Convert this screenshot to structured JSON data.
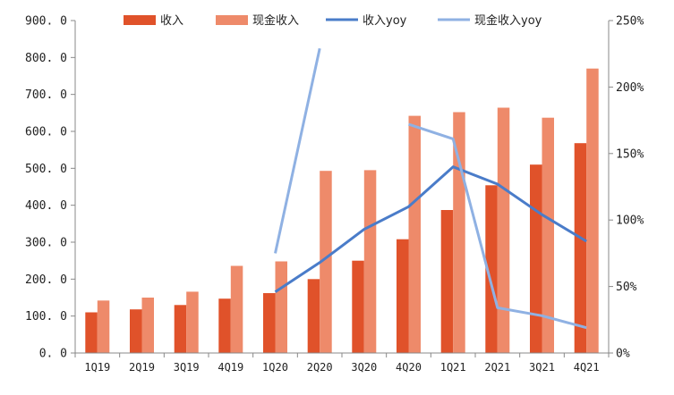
{
  "chart_data": {
    "type": "bar",
    "categories": [
      "1Q19",
      "2Q19",
      "3Q19",
      "4Q19",
      "1Q20",
      "2Q20",
      "3Q20",
      "4Q20",
      "1Q21",
      "2Q21",
      "3Q21",
      "4Q21"
    ],
    "series": [
      {
        "name": "收入",
        "kind": "bar",
        "axis": "left",
        "color": "#E0522A",
        "values": [
          110,
          118,
          130,
          147,
          162,
          200,
          250,
          308,
          387,
          454,
          510,
          568
        ]
      },
      {
        "name": "现金收入",
        "kind": "bar",
        "axis": "left",
        "color": "#EE8A6A",
        "values": [
          142,
          150,
          166,
          236,
          248,
          493,
          495,
          642,
          652,
          664,
          637,
          770
        ]
      },
      {
        "name": "收入yoy",
        "kind": "line",
        "axis": "right",
        "color": "#4A7CC9",
        "values": [
          null,
          null,
          null,
          null,
          0.46,
          0.68,
          0.93,
          1.1,
          1.4,
          1.27,
          1.04,
          0.84
        ]
      },
      {
        "name": "现金收入yoy",
        "kind": "line",
        "axis": "right",
        "color": "#8FB1E3",
        "values": [
          null,
          null,
          null,
          null,
          0.75,
          2.29,
          null,
          1.72,
          1.61,
          0.34,
          0.28,
          0.19
        ]
      }
    ],
    "y_left": {
      "min": 0,
      "max": 900,
      "ticks": [
        "0. 0",
        "100. 0",
        "200. 0",
        "300. 0",
        "400. 0",
        "500. 0",
        "600. 0",
        "700. 0",
        "800. 0",
        "900. 0"
      ]
    },
    "y_right": {
      "min": 0,
      "max": 2.5,
      "ticks": [
        "0%",
        "50%",
        "100%",
        "150%",
        "200%",
        "250%"
      ]
    },
    "legend_position": "top",
    "grid": false
  }
}
